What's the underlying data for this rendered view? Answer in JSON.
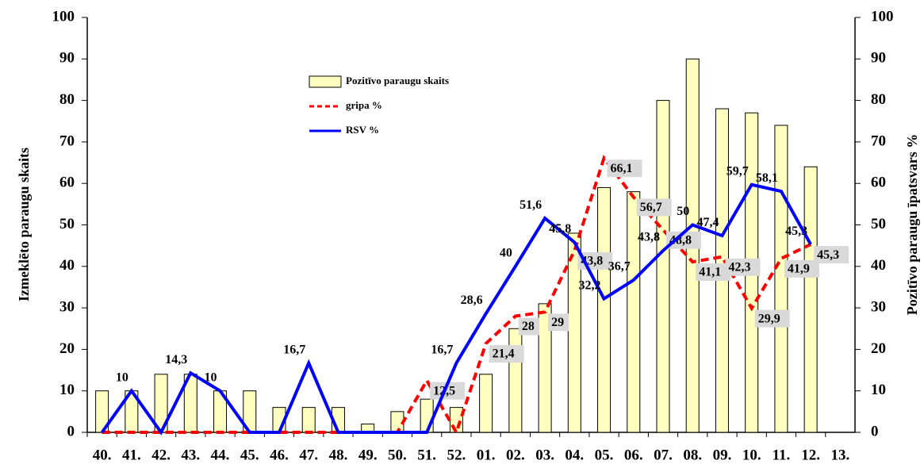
{
  "chart_data": {
    "type": "combo",
    "categories": [
      "40.",
      "41.",
      "42.",
      "43.",
      "44.",
      "45.",
      "46.",
      "47.",
      "48.",
      "49.",
      "50.",
      "51.",
      "52.",
      "01.",
      "02.",
      "03.",
      "04.",
      "05.",
      "06.",
      "07.",
      "08.",
      "09.",
      "10.",
      "11.",
      "12.",
      "13."
    ],
    "y_label": "Izmeklēto paraugu skaits",
    "y2_label": "Pozitīvo paraugu īpatsvars %",
    "ylim": [
      0,
      100
    ],
    "yticks": [
      0,
      10,
      20,
      30,
      40,
      50,
      60,
      70,
      80,
      90,
      100
    ],
    "y2lim": [
      0,
      100
    ],
    "y2ticks": [
      0,
      10,
      20,
      30,
      40,
      50,
      60,
      70,
      80,
      90,
      100
    ],
    "series": [
      {
        "name": "Pozitīvo paraugu skaits",
        "type": "bar",
        "color": "#ffffc0",
        "values": [
          10,
          10,
          14,
          14,
          10,
          10,
          6,
          6,
          6,
          2,
          5,
          8,
          6,
          14,
          25,
          31,
          48,
          59,
          58,
          80,
          90,
          78,
          77,
          74,
          64,
          null
        ]
      },
      {
        "name": "gripa %",
        "type": "line",
        "axis": "y2",
        "color": "#ff0000",
        "dash": true,
        "values": [
          0,
          0,
          0,
          0,
          0,
          0,
          0,
          0,
          0,
          0,
          0,
          12.5,
          0,
          21.4,
          28,
          29,
          43.8,
          66.1,
          56.7,
          48.8,
          41.1,
          42.3,
          29.9,
          41.9,
          45.3,
          null
        ],
        "value_labels": [
          null,
          null,
          null,
          null,
          null,
          null,
          null,
          null,
          null,
          null,
          null,
          "12,5",
          null,
          "21,4",
          "28",
          "29",
          "43,8",
          "66,1",
          "56,7",
          "48,8",
          "41,1",
          "42,3",
          "29,9",
          "41,9",
          "45,3",
          null
        ]
      },
      {
        "name": "RSV %",
        "type": "line",
        "axis": "y2",
        "color": "#0000ff",
        "values": [
          0,
          10,
          0,
          14.3,
          10,
          0,
          0,
          16.7,
          0,
          0,
          0,
          0,
          16.7,
          28.6,
          40,
          51.6,
          45.8,
          32.2,
          36.7,
          43.8,
          50,
          47.4,
          59.7,
          58.1,
          45.3,
          null
        ],
        "value_labels": [
          null,
          "10",
          null,
          "14,3",
          "10",
          null,
          null,
          "16,7",
          null,
          null,
          null,
          null,
          "16,7",
          "28,6",
          "40",
          "51,6",
          "45,8",
          "32,2",
          "36,7",
          "43,8",
          "50",
          "47,4",
          "59,7",
          "58,1",
          "45,3",
          null
        ]
      }
    ]
  }
}
